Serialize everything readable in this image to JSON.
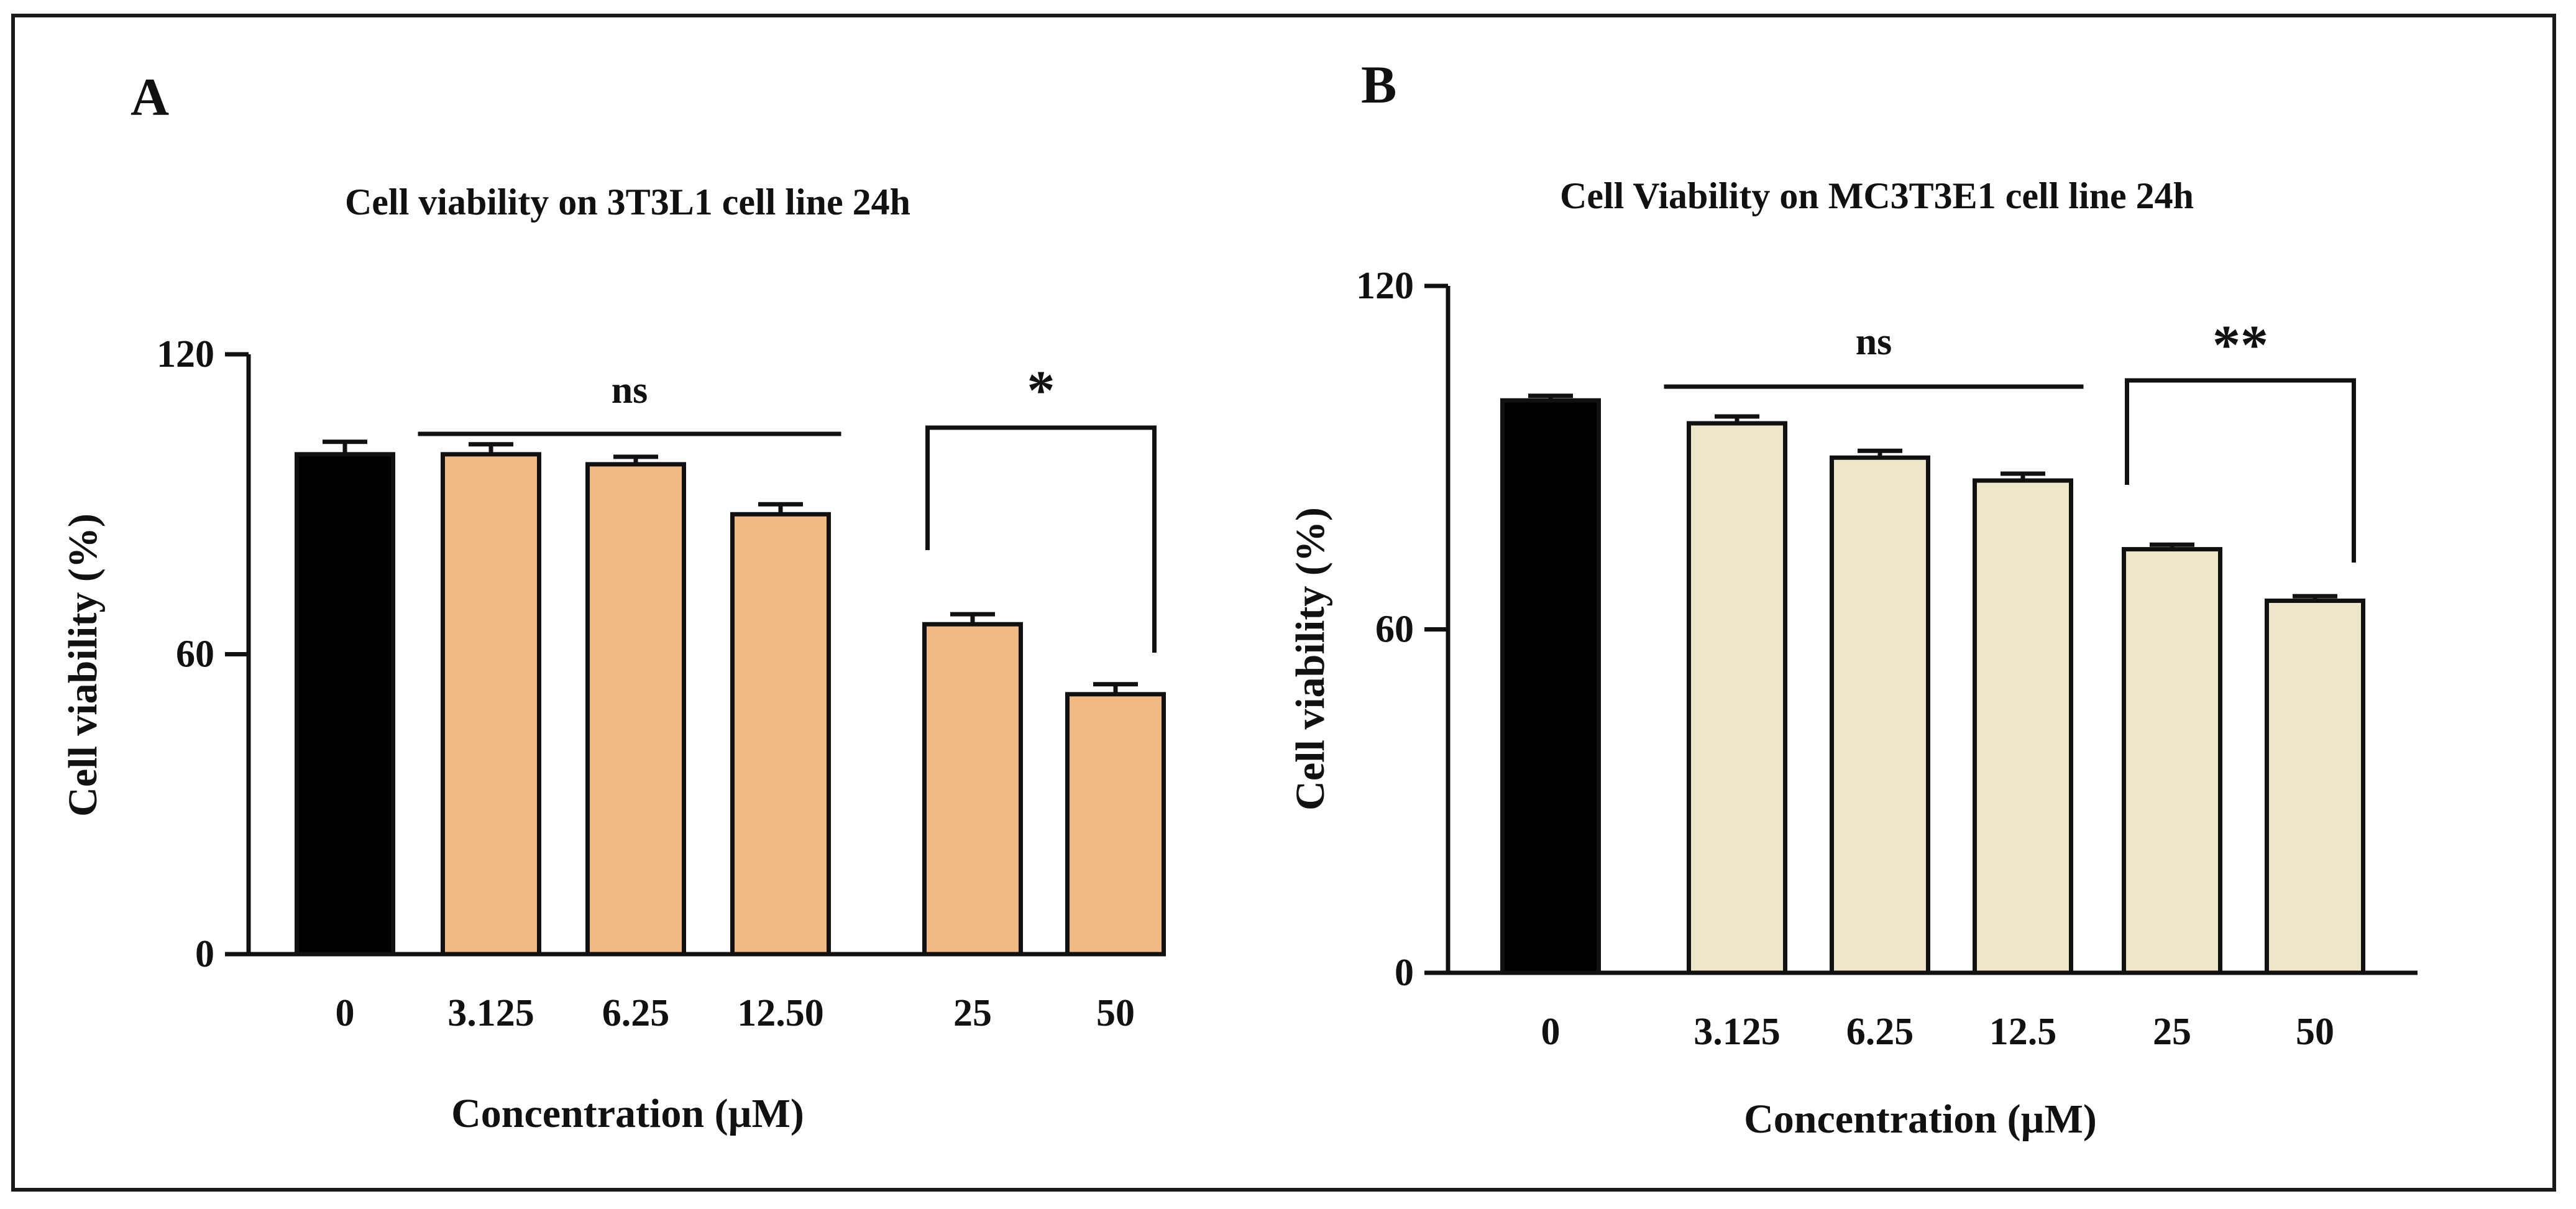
{
  "colors": {
    "axis": "#111111",
    "control_bar": "#000000",
    "bar_A": "#f0b981",
    "bar_B": "#ede6c8"
  },
  "chart_data": [
    {
      "type": "bar",
      "panel_label": "A",
      "title": "Cell viability on 3T3L1 cell line 24h",
      "xlabel": "Concentration (µM)",
      "ylabel": "Cell viability (%)",
      "categories": [
        "0",
        "3.125",
        "6.25",
        "12.50",
        "25",
        "50"
      ],
      "values": [
        100,
        100,
        98,
        88,
        66,
        52
      ],
      "errors": [
        2.5,
        2,
        1.5,
        2,
        2,
        2
      ],
      "ylim": [
        0,
        120
      ],
      "yticks": [
        0,
        60,
        120
      ],
      "significance": [
        {
          "label": "ns",
          "type": "line",
          "from": 1,
          "to": 3
        },
        {
          "label": "*",
          "type": "bracket",
          "from": 4,
          "to": 5
        }
      ]
    },
    {
      "type": "bar",
      "panel_label": "B",
      "title": "Cell Viability on MC3T3E1 cell line 24h",
      "xlabel": "Concentration (µM)",
      "ylabel": "Cell viability (%)",
      "categories": [
        "0",
        "3.125",
        "6.25",
        "12.5",
        "25",
        "50"
      ],
      "values": [
        100,
        96,
        90,
        86,
        74,
        65
      ],
      "errors": [
        0.8,
        1.2,
        1.2,
        1.2,
        0.8,
        0.8
      ],
      "ylim": [
        0,
        120
      ],
      "yticks": [
        0,
        60,
        120
      ],
      "significance": [
        {
          "label": "ns",
          "type": "line",
          "from": 1,
          "to": 3
        },
        {
          "label": "**",
          "type": "bracket",
          "from": 4,
          "to": 5
        }
      ]
    }
  ]
}
